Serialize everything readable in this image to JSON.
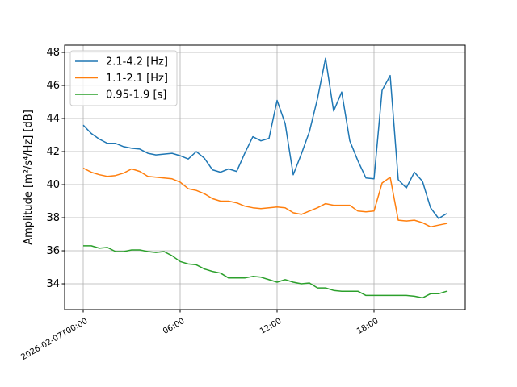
{
  "chart_data": {
    "type": "line",
    "title": "",
    "xlabel": "",
    "ylabel": "Amplitude [m²/s⁴/Hz] [dB]",
    "ylim": [
      32.44,
      48.44
    ],
    "xlim_hours": [
      -1.15,
      23.65
    ],
    "grid": true,
    "legend_placement": "top-left",
    "x_ticks": [
      {
        "hour": 0,
        "label": "2026-02-07T00:00"
      },
      {
        "hour": 6,
        "label": "06:00"
      },
      {
        "hour": 12,
        "label": "12:00"
      },
      {
        "hour": 18,
        "label": "18:00"
      }
    ],
    "y_ticks": [
      34,
      36,
      38,
      40,
      42,
      44,
      46,
      48
    ],
    "x_hours": [
      0,
      0.5,
      1,
      1.5,
      2,
      2.5,
      3,
      3.5,
      4,
      4.5,
      5,
      5.5,
      6,
      6.5,
      7,
      7.5,
      8,
      8.5,
      9,
      9.5,
      10,
      10.5,
      11,
      11.5,
      12,
      12.5,
      13,
      13.5,
      14,
      14.5,
      15,
      15.5,
      16,
      16.5,
      17,
      17.5,
      18,
      18.5,
      19,
      19.5,
      20,
      20.5,
      21,
      21.5,
      22,
      22.5
    ],
    "series": [
      {
        "name": "2.1-4.2 [Hz]",
        "color": "#1f77b4",
        "values": [
          43.6,
          43.1,
          42.75,
          42.5,
          42.5,
          42.3,
          42.2,
          42.15,
          41.9,
          41.8,
          41.85,
          41.9,
          41.75,
          41.55,
          42.0,
          41.6,
          40.9,
          40.75,
          40.95,
          40.8,
          41.9,
          42.9,
          42.65,
          42.8,
          45.1,
          43.7,
          40.6,
          41.85,
          43.2,
          45.2,
          47.65,
          44.45,
          45.6,
          42.65,
          41.45,
          40.4,
          40.35,
          45.7,
          46.6,
          40.3,
          39.8,
          40.75,
          40.2,
          38.6,
          37.95,
          38.25
        ]
      },
      {
        "name": "1.1-2.1 [Hz]",
        "color": "#ff7f0e",
        "values": [
          41.0,
          40.75,
          40.6,
          40.5,
          40.55,
          40.7,
          40.95,
          40.8,
          40.5,
          40.45,
          40.4,
          40.35,
          40.15,
          39.75,
          39.65,
          39.45,
          39.15,
          39.0,
          39.0,
          38.9,
          38.7,
          38.6,
          38.55,
          38.6,
          38.65,
          38.6,
          38.3,
          38.2,
          38.4,
          38.6,
          38.85,
          38.75,
          38.75,
          38.75,
          38.4,
          38.35,
          38.4,
          40.1,
          40.45,
          37.85,
          37.8,
          37.85,
          37.7,
          37.45,
          37.55,
          37.65
        ]
      },
      {
        "name": "0.95-1.9 [s]",
        "color": "#2ca02c",
        "values": [
          36.3,
          36.3,
          36.15,
          36.2,
          35.95,
          35.95,
          36.05,
          36.05,
          35.95,
          35.9,
          35.95,
          35.7,
          35.35,
          35.2,
          35.15,
          34.9,
          34.75,
          34.65,
          34.35,
          34.35,
          34.35,
          34.45,
          34.4,
          34.25,
          34.1,
          34.25,
          34.1,
          34.0,
          34.05,
          33.75,
          33.75,
          33.6,
          33.55,
          33.55,
          33.55,
          33.3,
          33.3,
          33.3,
          33.3,
          33.3,
          33.3,
          33.25,
          33.15,
          33.4,
          33.4,
          33.55
        ]
      }
    ]
  }
}
